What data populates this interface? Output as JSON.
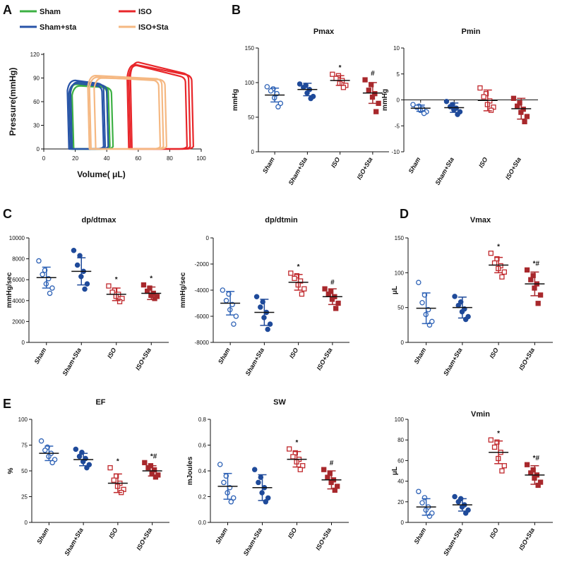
{
  "panel_labels": [
    "A",
    "B",
    "C",
    "D",
    "E"
  ],
  "colors": {
    "sham": "#2e62b6",
    "shamsta": "#1f4a9a",
    "iso": "#c0292d",
    "isosta": "#a8282c",
    "pv_sham": "#3cb043",
    "pv_shamsta": "#2854a8",
    "pv_iso": "#e8262a",
    "pv_isosta": "#f5b882"
  },
  "chart_data": [
    {
      "id": "pv",
      "type": "line",
      "title": "",
      "xlabel": "Volume( μL)",
      "ylabel": "Pressure(mmHg)",
      "xlim": [
        0,
        100
      ],
      "ylim": [
        0,
        120
      ],
      "xticks": [
        "0",
        "20",
        "40",
        "60",
        "80",
        "100"
      ],
      "yticks": [
        "0",
        "30",
        "60",
        "90",
        "120"
      ],
      "legend": [
        "Sham",
        "Sham+sta",
        "ISO",
        "ISO+Sta"
      ],
      "series": [
        {
          "name": "Sham",
          "color_key": "pv_sham",
          "loops": [
            [
              18,
              41,
              84,
              80
            ],
            [
              17,
              40,
              82,
              79
            ],
            [
              19,
              43,
              80,
              78
            ]
          ]
        },
        {
          "name": "Sham+sta",
          "color_key": "pv_shamsta",
          "loops": [
            [
              16,
              38,
              87,
              83
            ],
            [
              18,
              40,
              85,
              81
            ],
            [
              17,
              37,
              83,
              80
            ]
          ]
        },
        {
          "name": "ISO",
          "color_key": "pv_iso",
          "loops": [
            [
              56,
              92,
              110,
              96
            ],
            [
              54,
              94,
              107,
              94
            ],
            [
              55,
              90,
              106,
              92
            ]
          ]
        },
        {
          "name": "ISO+Sta",
          "color_key": "pv_isosta",
          "loops": [
            [
              29,
              75,
              93,
              89
            ],
            [
              33,
              77,
              90,
              88
            ],
            [
              30,
              73,
              91,
              87
            ]
          ]
        }
      ]
    },
    {
      "id": "pmax",
      "type": "scatter",
      "title": "Pmax",
      "ylabel": "mmHg",
      "ylim": [
        0,
        150
      ],
      "yticks": [
        0,
        50,
        100,
        150
      ],
      "categories": [
        "Sham",
        "Sham+Sta",
        "ISO",
        "ISO+Sta"
      ],
      "groups": [
        {
          "points": [
            94,
            91,
            88,
            84,
            78,
            70,
            65
          ],
          "mean": 82,
          "sd": 10
        },
        {
          "points": [
            98,
            96,
            93,
            90,
            85,
            80,
            77
          ],
          "mean": 90,
          "sd": 9
        },
        {
          "points": [
            112,
            110,
            106,
            103,
            99,
            96,
            93
          ],
          "mean": 103,
          "sd": 7
        },
        {
          "points": [
            104,
            97,
            89,
            84,
            79,
            70,
            58
          ],
          "mean": 85,
          "sd": 15
        }
      ],
      "annotations": [
        "",
        "",
        "*",
        "#"
      ]
    },
    {
      "id": "pmin",
      "type": "scatter",
      "title": "Pmin",
      "ylabel": "mmHg",
      "ylim": [
        -10,
        10
      ],
      "yticks": [
        -10,
        -5,
        0,
        5,
        10
      ],
      "categories": [
        "Sham",
        "Sham+Sta",
        "ISO",
        "ISO+Sta"
      ],
      "groups": [
        {
          "points": [
            -0.9,
            -1.2,
            -1.4,
            -1.7,
            -2.0,
            -2.3,
            -2.6
          ],
          "mean": -1.6,
          "sd": 0.6
        },
        {
          "points": [
            -0.3,
            -0.9,
            -1.3,
            -1.6,
            -1.9,
            -2.3,
            -2.8
          ],
          "mean": -1.5,
          "sd": 0.9
        },
        {
          "points": [
            2.3,
            1.2,
            0.6,
            -0.2,
            -0.9,
            -1.4,
            -2.0
          ],
          "mean": -0.1,
          "sd": 2.0
        },
        {
          "points": [
            0.3,
            -0.6,
            -1.2,
            -1.8,
            -2.4,
            -3.2,
            -4.2
          ],
          "mean": -1.7,
          "sd": 2.0
        }
      ],
      "annotations": [
        "",
        "",
        "",
        ""
      ]
    },
    {
      "id": "dpmax",
      "type": "scatter",
      "title": "dp/dtmax",
      "ylabel": "mmHg/sec",
      "ylim": [
        0,
        10000
      ],
      "yticks": [
        0,
        2000,
        4000,
        6000,
        8000,
        10000
      ],
      "categories": [
        "Sham",
        "Sham+Sta",
        "ISO",
        "ISO+Sta"
      ],
      "groups": [
        {
          "points": [
            7800,
            6900,
            6500,
            6100,
            5600,
            5200,
            4700
          ],
          "mean": 6200,
          "sd": 1000
        },
        {
          "points": [
            8800,
            8300,
            7400,
            6800,
            6300,
            5600,
            5100
          ],
          "mean": 6800,
          "sd": 1300
        },
        {
          "points": [
            5400,
            5000,
            4800,
            4600,
            4400,
            4200,
            3900
          ],
          "mean": 4600,
          "sd": 600
        },
        {
          "points": [
            5500,
            5200,
            4900,
            4700,
            4500,
            4400,
            4200
          ],
          "mean": 4700,
          "sd": 600
        }
      ],
      "annotations": [
        "",
        "",
        "*",
        "*"
      ]
    },
    {
      "id": "dpmin",
      "type": "scatter",
      "title": "dp/dtmin",
      "ylabel": "mmHg/sec",
      "ylim": [
        -8000,
        0
      ],
      "yticks": [
        -8000,
        -6000,
        -4000,
        -2000,
        0
      ],
      "categories": [
        "Sham",
        "Sham+Sta",
        "ISO",
        "ISO+Sta"
      ],
      "groups": [
        {
          "points": [
            -4000,
            -4300,
            -4800,
            -5100,
            -5500,
            -6000,
            -6600
          ],
          "mean": -5000,
          "sd": 900
        },
        {
          "points": [
            -4500,
            -4900,
            -5300,
            -5700,
            -6100,
            -6600,
            -7000
          ],
          "mean": -5700,
          "sd": 1000
        },
        {
          "points": [
            -2700,
            -2900,
            -3100,
            -3300,
            -3600,
            -3900,
            -4300
          ],
          "mean": -3400,
          "sd": 600
        },
        {
          "points": [
            -3900,
            -4100,
            -4300,
            -4500,
            -4700,
            -5000,
            -5400
          ],
          "mean": -4500,
          "sd": 600
        }
      ],
      "annotations": [
        "",
        "",
        "*",
        "#"
      ]
    },
    {
      "id": "vmax",
      "type": "scatter",
      "title": "Vmax",
      "ylabel": "μL",
      "ylim": [
        0,
        150
      ],
      "yticks": [
        0,
        50,
        100,
        150
      ],
      "categories": [
        "Sham",
        "Sham+Sta",
        "ISO",
        "ISO+Sta"
      ],
      "groups": [
        {
          "points": [
            86,
            68,
            57,
            47,
            40,
            30,
            25
          ],
          "mean": 49,
          "sd": 22
        },
        {
          "points": [
            66,
            58,
            53,
            48,
            44,
            37,
            33
          ],
          "mean": 50,
          "sd": 15
        },
        {
          "points": [
            128,
            120,
            114,
            110,
            106,
            101,
            94
          ],
          "mean": 111,
          "sd": 11
        },
        {
          "points": [
            104,
            96,
            90,
            84,
            78,
            68,
            56
          ],
          "mean": 84,
          "sd": 17
        }
      ],
      "annotations": [
        "",
        "",
        "*",
        "*#"
      ]
    },
    {
      "id": "ef",
      "type": "scatter",
      "title": "EF",
      "ylabel": "%",
      "ylim": [
        0,
        100
      ],
      "yticks": [
        0,
        25,
        50,
        75,
        100
      ],
      "categories": [
        "Sham",
        "Sham+Sta",
        "ISO",
        "ISO+Sta"
      ],
      "groups": [
        {
          "points": [
            79,
            73,
            70,
            67,
            64,
            61,
            58
          ],
          "mean": 67,
          "sd": 7
        },
        {
          "points": [
            71,
            68,
            64,
            62,
            59,
            56,
            53
          ],
          "mean": 61,
          "sd": 6
        },
        {
          "points": [
            53,
            45,
            41,
            38,
            35,
            32,
            29
          ],
          "mean": 38,
          "sd": 9
        },
        {
          "points": [
            58,
            55,
            53,
            51,
            48,
            46,
            44
          ],
          "mean": 50,
          "sd": 5
        }
      ],
      "annotations": [
        "",
        "",
        "*",
        "*#"
      ]
    },
    {
      "id": "sw",
      "type": "scatter",
      "title": "SW",
      "ylabel": "mJoules",
      "ylim": [
        0,
        0.8
      ],
      "yticks": [
        "0.0",
        "0.2",
        "0.4",
        "0.6",
        "0.8"
      ],
      "categories": [
        "Sham",
        "Sham+Sta",
        "ISO",
        "ISO+Sta"
      ],
      "groups": [
        {
          "points": [
            0.45,
            0.36,
            0.31,
            0.27,
            0.23,
            0.19,
            0.16
          ],
          "mean": 0.28,
          "sd": 0.1
        },
        {
          "points": [
            0.41,
            0.35,
            0.31,
            0.27,
            0.23,
            0.19,
            0.16
          ],
          "mean": 0.27,
          "sd": 0.1
        },
        {
          "points": [
            0.57,
            0.54,
            0.51,
            0.49,
            0.47,
            0.44,
            0.41
          ],
          "mean": 0.49,
          "sd": 0.06
        },
        {
          "points": [
            0.41,
            0.38,
            0.35,
            0.33,
            0.31,
            0.28,
            0.25
          ],
          "mean": 0.33,
          "sd": 0.07
        }
      ],
      "annotations": [
        "",
        "",
        "*",
        "#"
      ]
    },
    {
      "id": "vmin",
      "type": "scatter",
      "title": "Vmin",
      "ylabel": "μL",
      "ylim": [
        0,
        100
      ],
      "yticks": [
        0,
        20,
        40,
        60,
        80,
        100
      ],
      "categories": [
        "Sham",
        "Sham+Sta",
        "ISO",
        "ISO+Sta"
      ],
      "groups": [
        {
          "points": [
            30,
            24,
            19,
            15,
            12,
            9,
            6
          ],
          "mean": 15,
          "sd": 8
        },
        {
          "points": [
            25,
            23,
            20,
            17,
            15,
            12,
            9
          ],
          "mean": 17,
          "sd": 6
        },
        {
          "points": [
            80,
            78,
            73,
            68,
            62,
            55,
            50
          ],
          "mean": 68,
          "sd": 11
        },
        {
          "points": [
            56,
            51,
            48,
            46,
            43,
            39,
            36
          ],
          "mean": 46,
          "sd": 9
        }
      ],
      "annotations": [
        "",
        "",
        "*",
        "*#"
      ]
    }
  ]
}
